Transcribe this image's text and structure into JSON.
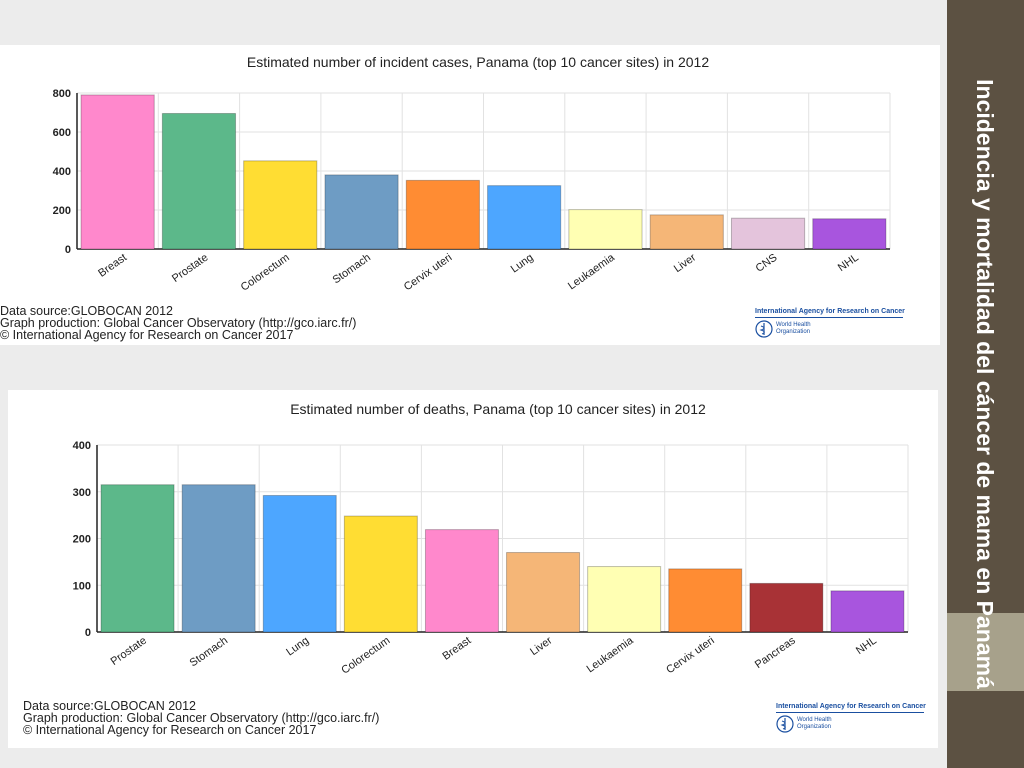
{
  "slide": {
    "title": "Incidencia y mortalidad del cáncer de mama en Panamá"
  },
  "colors": {
    "sidebar": "#5c5142",
    "sidebar_accent": "#a7a18b"
  },
  "chart_data": [
    {
      "type": "bar",
      "title": "Estimated number of incident cases, Panama (top 10 cancer sites) in 2012",
      "categories": [
        "Breast",
        "Prostate",
        "Colorectum",
        "Stomach",
        "Cervix uteri",
        "Lung",
        "Leukaemia",
        "Liver",
        "CNS",
        "NHL"
      ],
      "values": [
        790,
        695,
        452,
        380,
        352,
        325,
        202,
        175,
        158,
        155
      ],
      "colors": [
        "#ff88cc",
        "#5cb88a",
        "#ffdd33",
        "#6e9cc4",
        "#ff8c33",
        "#4da6ff",
        "#ffffb3",
        "#f5b677",
        "#e4c4dc",
        "#a855de"
      ],
      "ylim": [
        0,
        800
      ],
      "yticks": [
        0,
        200,
        400,
        600,
        800
      ],
      "grid": true,
      "source": [
        "Data source:GLOBOCAN 2012",
        "Graph production: Global Cancer Observatory (http://gco.iarc.fr/)",
        "© International Agency for Research on Cancer 2017"
      ]
    },
    {
      "type": "bar",
      "title": "Estimated number of deaths, Panama (top 10 cancer sites) in 2012",
      "categories": [
        "Prostate",
        "Stomach",
        "Lung",
        "Colorectum",
        "Breast",
        "Liver",
        "Leukaemia",
        "Cervix uteri",
        "Pancreas",
        "NHL"
      ],
      "values": [
        315,
        315,
        292,
        248,
        219,
        170,
        140,
        135,
        104,
        88
      ],
      "colors": [
        "#5cb88a",
        "#6e9cc4",
        "#4da6ff",
        "#ffdd33",
        "#ff88cc",
        "#f5b677",
        "#ffffb3",
        "#ff8c33",
        "#a83236",
        "#a855de"
      ],
      "ylim": [
        0,
        400
      ],
      "yticks": [
        0,
        100,
        200,
        300,
        400
      ],
      "grid": true,
      "source": [
        "Data source:GLOBOCAN 2012",
        "Graph production: Global Cancer Observatory (http://gco.iarc.fr/)",
        "© International Agency for Research on Cancer 2017"
      ]
    }
  ],
  "logo": {
    "iarc": "International Agency for Research on Cancer",
    "who_line1": "World Health",
    "who_line2": "Organization"
  }
}
